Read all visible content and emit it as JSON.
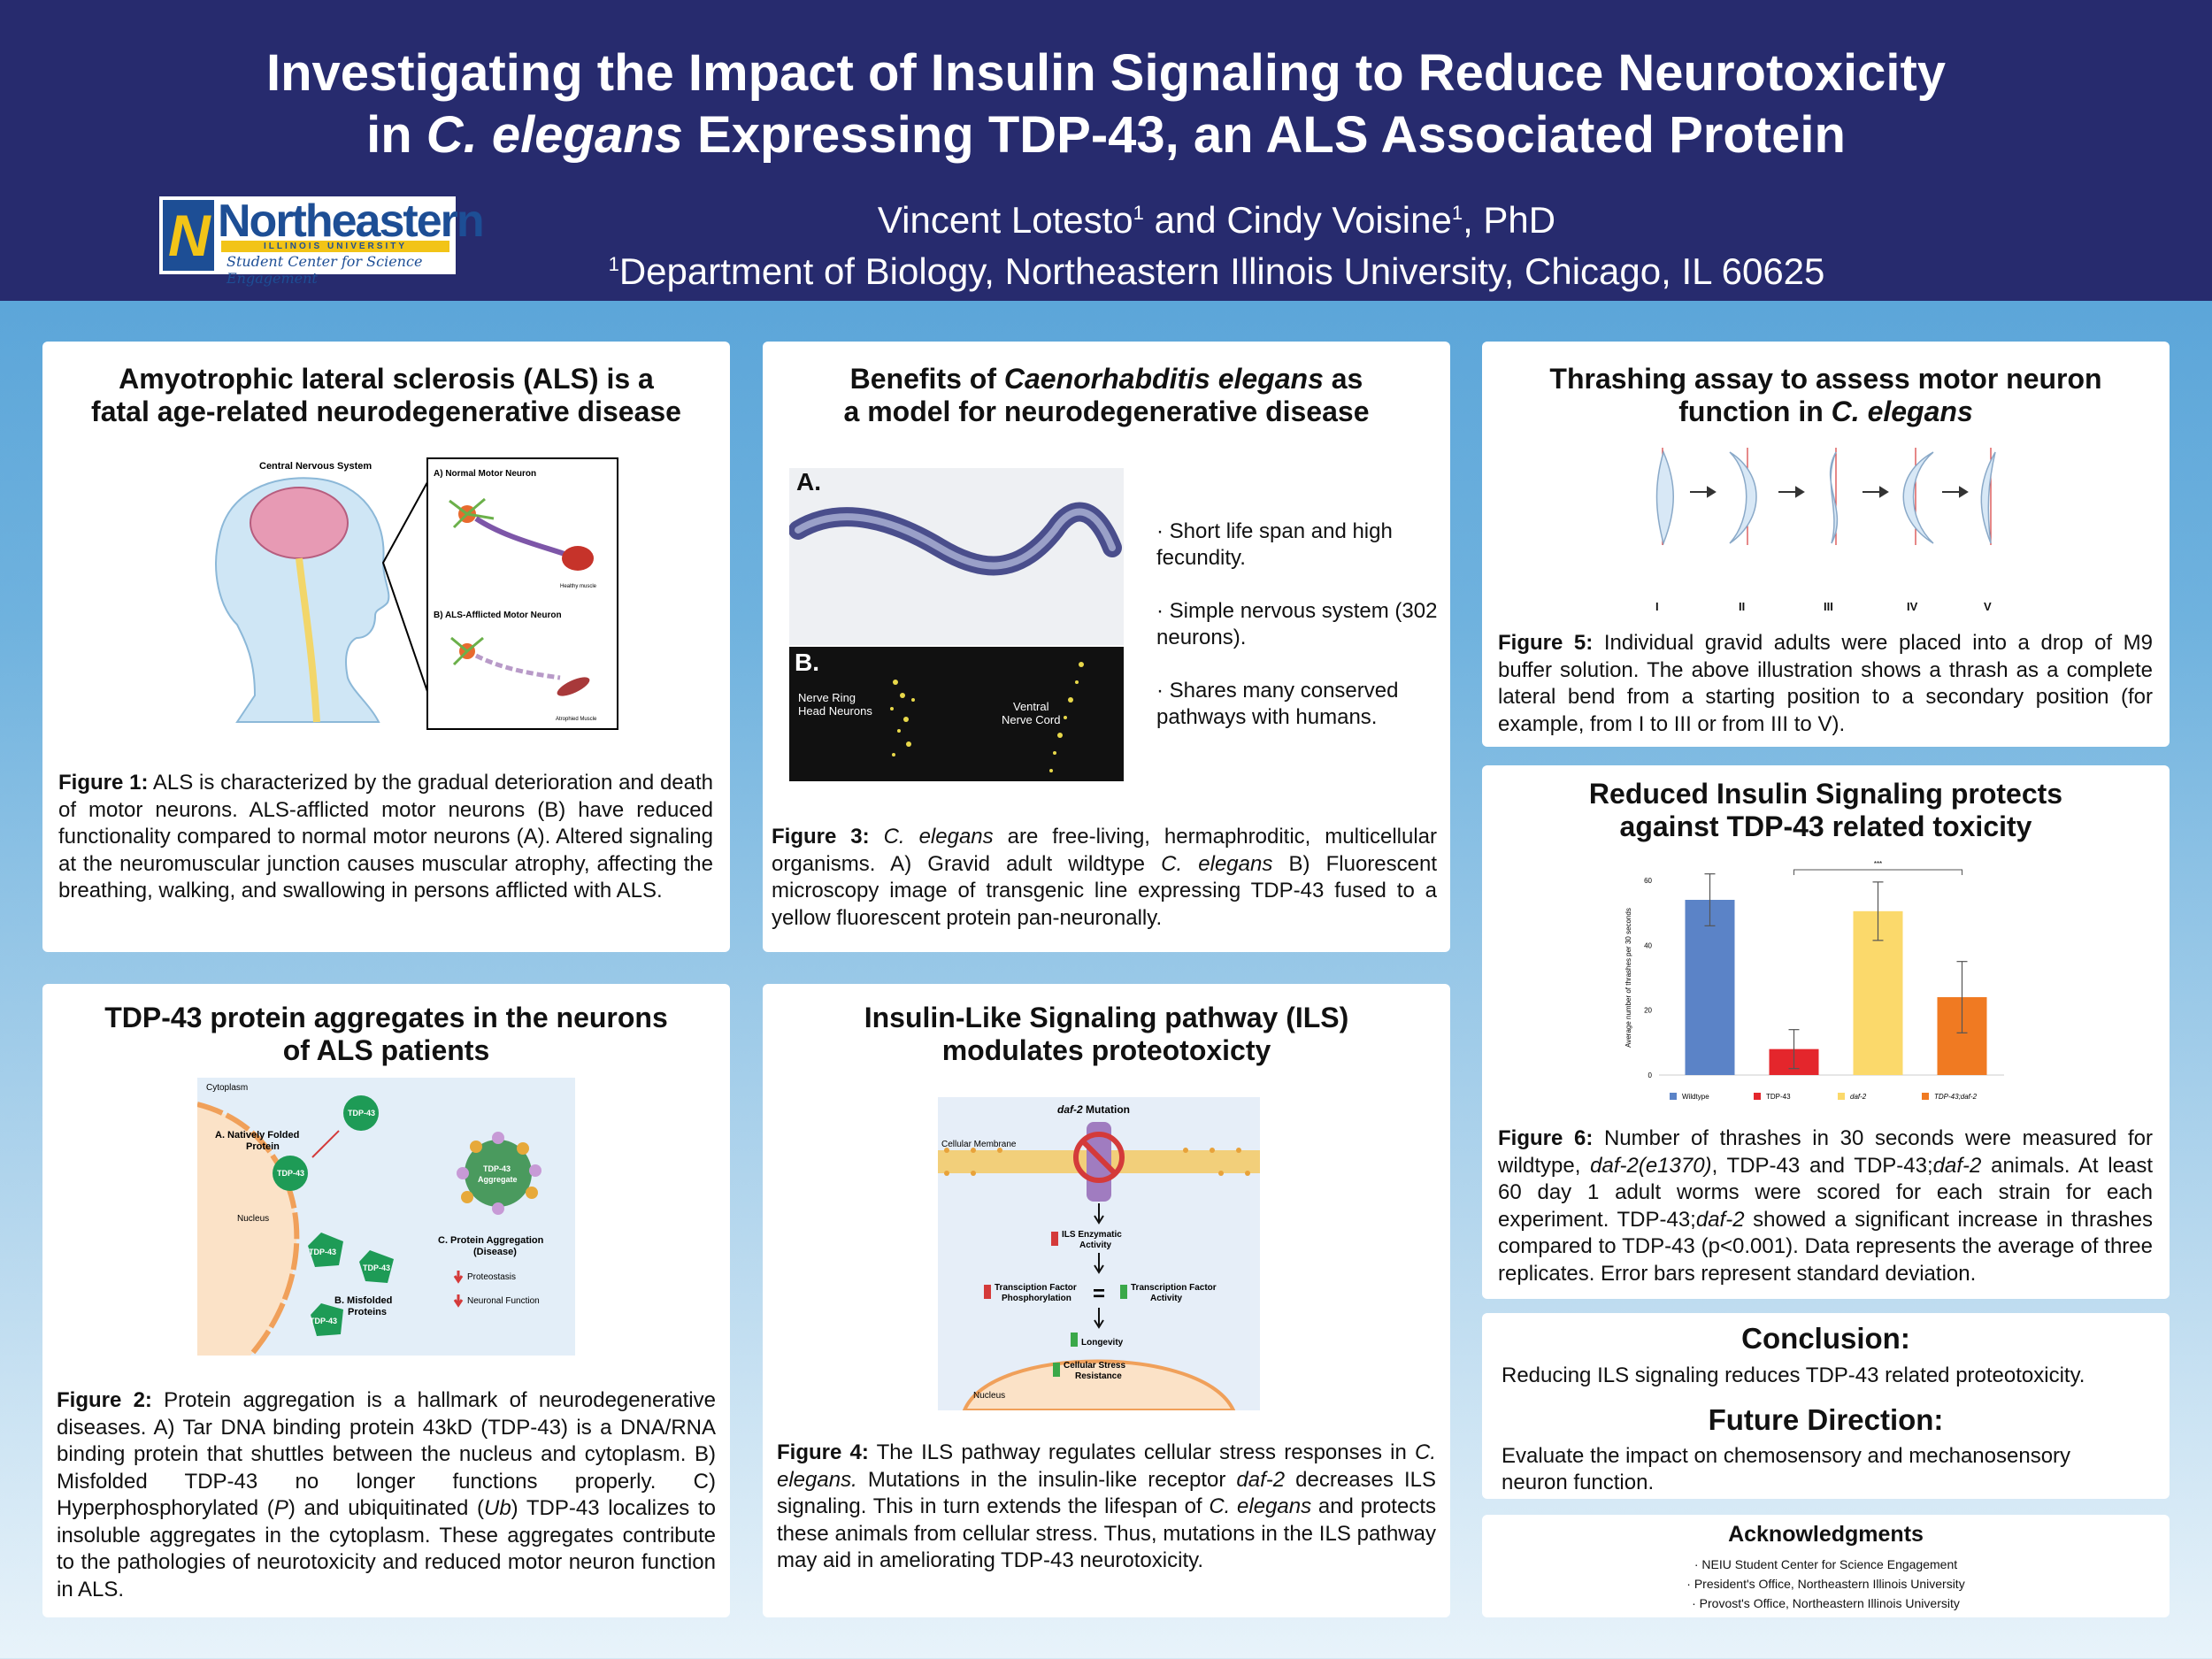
{
  "header": {
    "title_line1": "Investigating the Impact of Insulin Signaling to Reduce Neurotoxicity",
    "title_line2_pre": "in ",
    "title_line2_italic": "C. elegans",
    "title_line2_post": " Expressing TDP-43, an ALS Associated Protein",
    "author1": "Vincent Lotesto",
    "author_join": "and Cindy Voisine",
    "author_suffix": ", PhD",
    "sup": "1",
    "affiliation": "Department of Biology, Northeastern Illinois University, Chicago, IL 60625",
    "logo": {
      "n": "N",
      "word": "Northeastern",
      "university": "ILLINOIS UNIVERSITY",
      "center": "Student Center for Science Engagement"
    }
  },
  "panel1": {
    "title_l1": "Amyotrophic lateral sclerosis (ALS) is a",
    "title_l2": "fatal age-related neurodegenerative disease",
    "fig_cns": "Central Nervous System",
    "fig_a": "A) Normal Motor Neuron",
    "fig_healthy": "Healthy muscle",
    "fig_b": "B) ALS-Afflicted Motor Neuron",
    "fig_atrophied": "Atrophied Muscle",
    "cap_label": "Figure 1:",
    "cap_text": " ALS is characterized by the gradual deterioration and death of motor neurons. ALS-afflicted motor neurons (B) have reduced functionality compared to normal motor neurons (A). Altered signaling at the neuromuscular junction causes muscular atrophy, affecting the breathing, walking, and swallowing in persons afflicted with ALS."
  },
  "panel2": {
    "title_pre": "Benefits of ",
    "title_italic": "Caenorhabditis elegans",
    "title_post": " as",
    "title_l2": "a model for neurodegenerative disease",
    "label_a": "A.",
    "label_b": "B.",
    "nerve_ring": "Nerve Ring",
    "head_neurons": "Head Neurons",
    "ventral": "Ventral",
    "nerve_cord": "Nerve Cord",
    "bullet1": "· Short life span and high fecundity.",
    "bullet2": "· Simple nervous system (302 neurons).",
    "bullet3": "· Shares many conserved pathways with humans.",
    "cap_label": "Figure 3:",
    "cap_i1": " C. elegans",
    "cap_t1": " are free-living, hermaphroditic, multicellular organisms. A) Gravid adult wildtype ",
    "cap_i2": "C. elegans",
    "cap_t2": " B) Fluorescent microscopy image of transgenic line expressing TDP-43 fused to a yellow fluorescent protein pan-neuronally."
  },
  "panel3": {
    "title_l1": "Thrashing assay to assess motor neuron",
    "title_l2_pre": "function in ",
    "title_l2_italic": "C. elegans",
    "stages": [
      "I",
      "II",
      "III",
      "IV",
      "V"
    ],
    "cap_label": "Figure 5:",
    "cap_text": " Individual gravid adults were placed into a drop of M9 buffer solution. The above illustration shows a thrash as a complete lateral bend from a starting position to a secondary position (for example, from I to III or from III to V)."
  },
  "panel4": {
    "title_l1": "TDP-43 protein aggregates in the neurons",
    "title_l2": "of ALS patients",
    "fig_cytoplasm": "Cytoplasm",
    "fig_a": "A. Natively Folded",
    "fig_a2": "Protein",
    "fig_tdp": "TDP-43",
    "fig_nucleus": "Nucleus",
    "fig_b": "B. Misfolded",
    "fig_b2": "Proteins",
    "fig_agg": "TDP-43",
    "fig_agg2": "Aggregate",
    "fig_c": "C. Protein Aggregation",
    "fig_c2": "(Disease)",
    "fig_proteostasis": "Proteostasis",
    "fig_neuronal": "Neuronal Function",
    "cap_label": "Figure 2:",
    "cap_t1": " Protein aggregation is a hallmark of neurodegenerative diseases. A) Tar DNA binding protein 43kD (TDP-43) is a DNA/RNA binding protein that shuttles between the nucleus and cytoplasm. B) Misfolded TDP-43 no longer functions properly. C) Hyperphosphorylated (",
    "cap_i1": "P",
    "cap_t2": ") and ubiquitinated (",
    "cap_i2": "Ub",
    "cap_t3": ") TDP-43 localizes to insoluble aggregates in the cytoplasm. These aggregates contribute to the pathologies of neurotoxicity and reduced motor neuron function in ALS."
  },
  "panel5": {
    "title_l1": "Insulin-Like Signaling pathway (ILS)",
    "title_l2": "modulates proteotoxicty",
    "fig_daf2": "daf-2",
    "fig_mutation": " Mutation",
    "fig_membrane": "Cellular Membrane",
    "fig_ils": "ILS Enzymatic",
    "fig_activity": "Activity",
    "fig_tf1": "Transciption Factor",
    "fig_phos": "Phosphorylation",
    "fig_tf2": "Transcription Factor",
    "fig_activity2": "Activity",
    "fig_longevity": "Longevity",
    "fig_stress": "Cellular Stress",
    "fig_resistance": "Resistance",
    "fig_nucleus": "Nucleus",
    "cap_label": "Figure 4:",
    "cap_t1": " The ILS pathway regulates cellular stress responses in ",
    "cap_i1": "C. elegans.",
    "cap_t2": " Mutations in the insulin-like receptor ",
    "cap_i2": "daf-2",
    "cap_t3": " decreases ILS signaling. This in turn extends the lifespan of ",
    "cap_i3": "C. elegans",
    "cap_t4": " and protects these animals from cellular stress. Thus, mutations in the ILS pathway may aid in ameliorating TDP-43 neurotoxicity."
  },
  "panel6": {
    "title_l1": "Reduced Insulin Signaling protects",
    "title_l2": "against TDP-43 related toxicity",
    "cap_label": "Figure 6:",
    "cap_t1": " Number of thrashes in 30 seconds were measured for wildtype, ",
    "cap_i1": "daf-2(e1370)",
    "cap_t2": ", TDP-43 and TDP-43;",
    "cap_i2": "daf-2",
    "cap_t3": " animals. At least 60 day 1 adult worms were scored for each strain for each experiment. TDP-43;",
    "cap_i3": "daf-2",
    "cap_t4": " showed a significant increase in thrashes compared to TDP-43 (p<0.001). Data represents the average of three replicates. Error bars represent standard deviation."
  },
  "chart_data": {
    "type": "bar",
    "title": "",
    "xlabel": "",
    "ylabel": "Average number of thrashes per 30 seconds",
    "categories": [
      "Wildtype",
      "TDP-43",
      "daf-2",
      "TDP-43;daf-2"
    ],
    "values": [
      54,
      8,
      50.5,
      24
    ],
    "errors": [
      8,
      6,
      9,
      11
    ],
    "ylim": [
      0,
      60
    ],
    "yticks": [
      0,
      20,
      40,
      60
    ],
    "colors": [
      "#5b83c7",
      "#e4262c",
      "#fbd96b",
      "#f07a22"
    ],
    "significance": {
      "from": "TDP-43",
      "to": "TDP-43;daf-2",
      "label": "***"
    },
    "legend": [
      "Wildtype",
      "TDP-43",
      "daf-2",
      "TDP-43;daf-2"
    ]
  },
  "panel7": {
    "conclusion_title": "Conclusion:",
    "conclusion_text": "Reducing ILS signaling reduces TDP-43 related proteotoxicity.",
    "future_title": "Future Direction:",
    "future_text": "Evaluate the impact on chemosensory and mechanosensory neuron function."
  },
  "panel8": {
    "title": "Acknowledgments",
    "items": [
      "· NEIU Student Center for Science Engagement",
      "· President's Office, Northeastern Illinois University",
      "· Provost's Office, Northeastern Illinois University"
    ]
  }
}
